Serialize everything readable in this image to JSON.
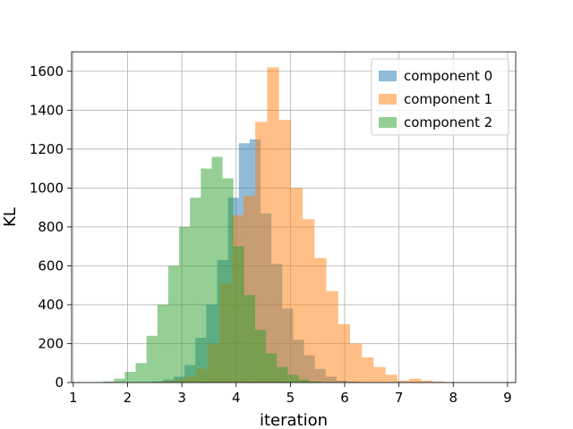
{
  "chart_data": {
    "type": "bar",
    "title": "",
    "xlabel": "iteration",
    "ylabel": "KL",
    "xlim": [
      0.97,
      9.15
    ],
    "ylim": [
      0,
      1700
    ],
    "xticks": [
      1,
      2,
      3,
      4,
      5,
      6,
      7,
      8,
      9
    ],
    "yticks": [
      0,
      200,
      400,
      600,
      800,
      1000,
      1200,
      1400,
      1600
    ],
    "grid": true,
    "legend_position": "top-right",
    "series": [
      {
        "name": "component 0",
        "color": "#1f77b4",
        "opacity": 0.5,
        "bin_start": 2.45,
        "bin_width": 0.2,
        "values": [
          5,
          15,
          30,
          90,
          230,
          400,
          630,
          950,
          1230,
          1250,
          870,
          610,
          380,
          220,
          140,
          70,
          30,
          10,
          5
        ]
      },
      {
        "name": "component 1",
        "color": "#ff7f0e",
        "opacity": 0.5,
        "bin_start": 2.61,
        "bin_width": 0.218,
        "values": [
          5,
          15,
          30,
          70,
          200,
          510,
          860,
          960,
          1340,
          1620,
          1350,
          1000,
          840,
          640,
          470,
          300,
          200,
          130,
          80,
          40,
          10,
          20,
          10,
          5
        ]
      },
      {
        "name": "component 2",
        "color": "#2ca02c",
        "opacity": 0.5,
        "bin_start": 1.55,
        "bin_width": 0.2,
        "values": [
          5,
          20,
          55,
          100,
          240,
          400,
          600,
          800,
          950,
          1100,
          1160,
          1050,
          700,
          450,
          270,
          150,
          80,
          40,
          15,
          5
        ]
      }
    ]
  }
}
